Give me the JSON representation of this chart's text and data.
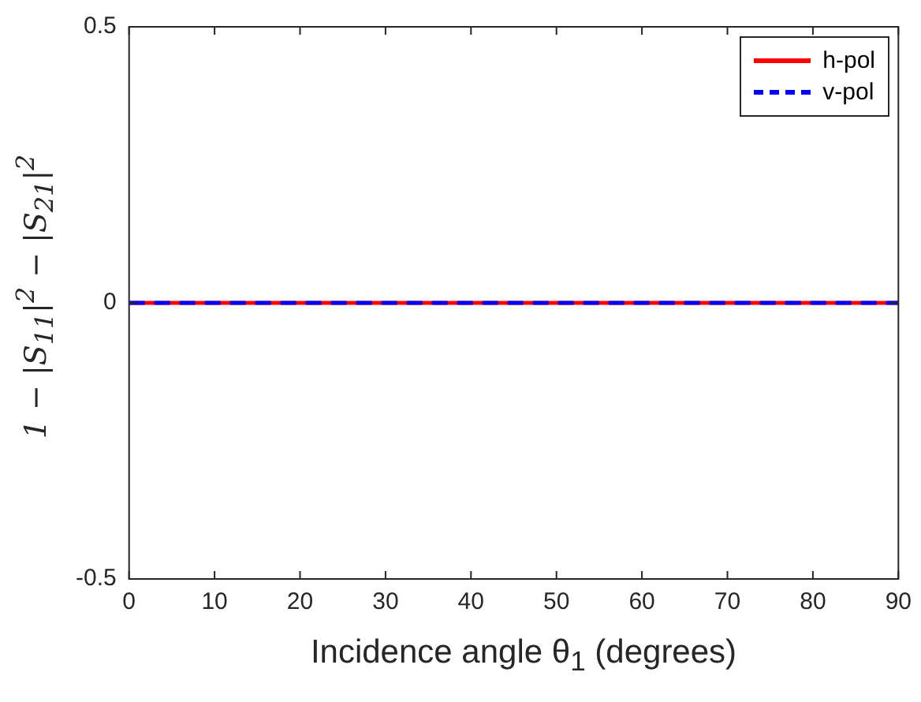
{
  "chart_data": {
    "type": "line",
    "xlabel": "Incidence angle θ$_{1}$ (degrees)",
    "ylabel": "1 − |S$_{11}$|$^{2}$ − |S$_{21}$|$^{2}$",
    "xlim": [
      0,
      90
    ],
    "xticks": [
      0,
      10,
      20,
      30,
      40,
      50,
      60,
      70,
      80,
      90
    ],
    "ylim": [
      -0.5,
      0.5
    ],
    "yticks": [
      -0.5,
      0,
      0.5
    ],
    "grid": false,
    "x": [
      0,
      90
    ],
    "legend": "top right",
    "marker": "none",
    "series": [
      {
        "name": "h-pol",
        "color": "#ff0000",
        "values": [
          0,
          0
        ],
        "line_style": "solid"
      },
      {
        "name": "v-pol",
        "color": "#0000ff",
        "values": [
          0,
          0
        ],
        "line_style": "dashed"
      }
    ]
  }
}
